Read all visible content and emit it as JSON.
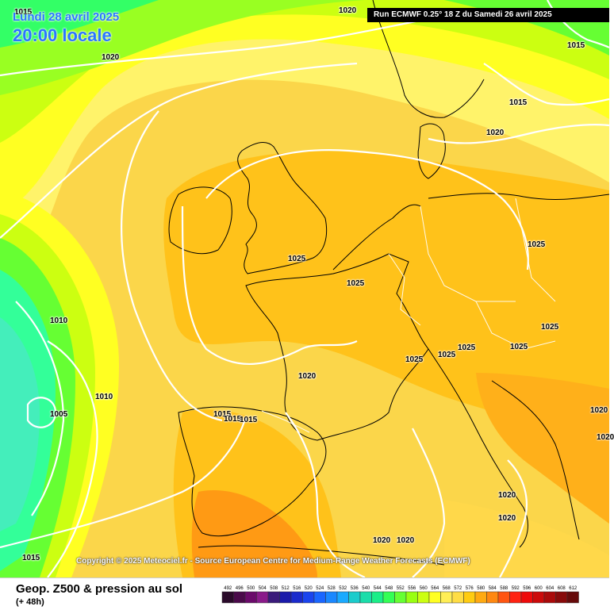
{
  "header": {
    "date": "Lundi 28 avril 2025",
    "time": "20:00 locale",
    "run": "Run ECMWF 0.25° 18 Z du Samedi 26 avril 2025"
  },
  "copyright": "Copyright © 2025 Meteociel.fr - Source European Centre for Medium-Range Weather Forecasts (ECMWF)",
  "footer": {
    "title": "Geop. Z500 & pression au sol",
    "subtitle": "(+ 48h)"
  },
  "legend": {
    "values": [
      "492",
      "496",
      "500",
      "504",
      "508",
      "512",
      "516",
      "520",
      "524",
      "528",
      "532",
      "536",
      "540",
      "544",
      "548",
      "552",
      "556",
      "560",
      "564",
      "568",
      "572",
      "576",
      "580",
      "584",
      "588",
      "592",
      "596",
      "600",
      "604",
      "608",
      "612"
    ],
    "colors": [
      "#2a0a2a",
      "#4a0a4a",
      "#6a0a6a",
      "#8a1a8a",
      "#3a1a7a",
      "#1a1aaa",
      "#1a2acc",
      "#1a44ee",
      "#1a66ff",
      "#1a88ff",
      "#1aaaff",
      "#1acccc",
      "#1addaa",
      "#1aee88",
      "#33ff55",
      "#66ff33",
      "#99ff11",
      "#ccff11",
      "#ffff22",
      "#ffee55",
      "#ffdd44",
      "#ffcc11",
      "#ffaa11",
      "#ff8811",
      "#ff5511",
      "#ff2211",
      "#ee0a0a",
      "#cc0a0a",
      "#aa0a0a",
      "#880a0a",
      "#660a0a"
    ]
  },
  "isobars": [
    {
      "label": "1015"
    },
    {
      "label": "1020"
    },
    {
      "label": "1020"
    },
    {
      "label": "1015"
    },
    {
      "label": "1020"
    },
    {
      "label": "1015"
    },
    {
      "label": "1025"
    },
    {
      "label": "1025"
    },
    {
      "label": "1025"
    },
    {
      "label": "1025"
    },
    {
      "label": "1010"
    },
    {
      "label": "1010"
    },
    {
      "label": "1005"
    },
    {
      "label": "1020"
    },
    {
      "label": "1025"
    },
    {
      "label": "1025"
    },
    {
      "label": "1025"
    },
    {
      "label": "1025"
    },
    {
      "label": "1015"
    },
    {
      "label": "1015"
    },
    {
      "label": "1015"
    },
    {
      "label": "1020"
    },
    {
      "label": "1020"
    },
    {
      "label": "1020"
    },
    {
      "label": "1020"
    },
    {
      "label": "1020"
    },
    {
      "label": "1015"
    },
    {
      "label": "1020"
    }
  ],
  "colors": {
    "background_sea": "#fcd84a"
  }
}
